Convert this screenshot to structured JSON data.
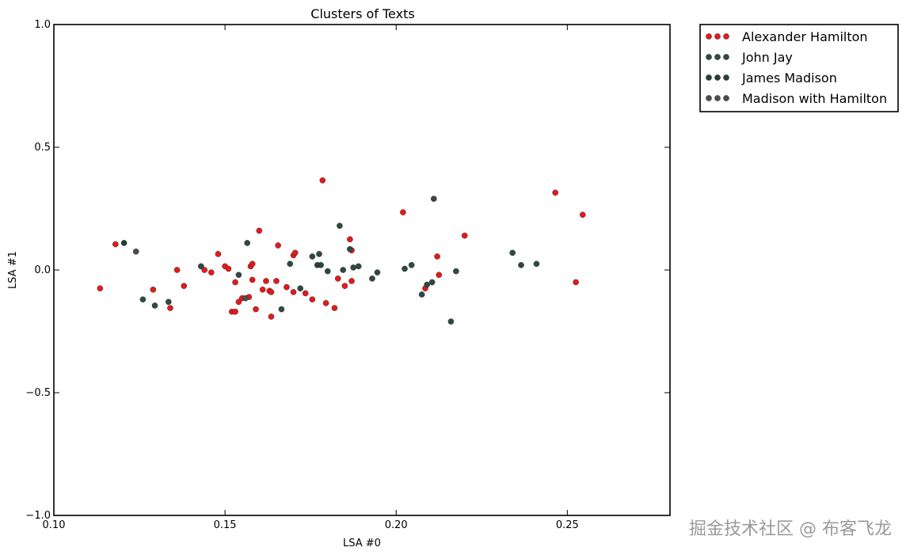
{
  "chart_data": {
    "type": "scatter",
    "title": "Clusters of Texts",
    "xlabel": "LSA #0",
    "ylabel": "LSA #1",
    "xlim": [
      0.1,
      0.28
    ],
    "ylim": [
      -1.0,
      1.0
    ],
    "x_ticks": [
      0.1,
      0.15,
      0.2,
      0.25
    ],
    "x_tick_labels": [
      "0.10",
      "0.15",
      "0.20",
      "0.25"
    ],
    "y_ticks": [
      -1.0,
      -0.5,
      0.0,
      0.5,
      1.0
    ],
    "y_tick_labels": [
      "−1.0",
      "−0.5",
      "0.0",
      "0.5",
      "1.0"
    ],
    "grid": false,
    "legend_position": "outside-top-right",
    "series": [
      {
        "name": "Alexander Hamilton",
        "color": "#e31a1c",
        "points": [
          [
            0.1135,
            -0.075
          ],
          [
            0.118,
            0.105
          ],
          [
            0.129,
            -0.08
          ],
          [
            0.134,
            -0.155
          ],
          [
            0.136,
            0.0
          ],
          [
            0.138,
            -0.065
          ],
          [
            0.144,
            0.0
          ],
          [
            0.146,
            -0.01
          ],
          [
            0.148,
            0.065
          ],
          [
            0.15,
            0.015
          ],
          [
            0.151,
            0.005
          ],
          [
            0.152,
            -0.17
          ],
          [
            0.153,
            -0.05
          ],
          [
            0.154,
            -0.13
          ],
          [
            0.153,
            -0.17
          ],
          [
            0.155,
            -0.115
          ],
          [
            0.157,
            -0.11
          ],
          [
            0.1575,
            0.015
          ],
          [
            0.158,
            0.025
          ],
          [
            0.158,
            -0.04
          ],
          [
            0.159,
            -0.16
          ],
          [
            0.16,
            0.16
          ],
          [
            0.161,
            -0.08
          ],
          [
            0.162,
            -0.045
          ],
          [
            0.163,
            -0.085
          ],
          [
            0.1635,
            -0.09
          ],
          [
            0.1635,
            -0.19
          ],
          [
            0.165,
            -0.045
          ],
          [
            0.1655,
            0.1
          ],
          [
            0.168,
            -0.07
          ],
          [
            0.17,
            0.06
          ],
          [
            0.1705,
            0.07
          ],
          [
            0.17,
            -0.09
          ],
          [
            0.1735,
            -0.095
          ],
          [
            0.1755,
            -0.12
          ],
          [
            0.1785,
            0.365
          ],
          [
            0.1795,
            -0.135
          ],
          [
            0.182,
            -0.155
          ],
          [
            0.183,
            -0.035
          ],
          [
            0.185,
            -0.065
          ],
          [
            0.1865,
            0.125
          ],
          [
            0.187,
            0.08
          ],
          [
            0.187,
            -0.045
          ],
          [
            0.202,
            0.235
          ],
          [
            0.2085,
            -0.075
          ],
          [
            0.212,
            0.055
          ],
          [
            0.2125,
            -0.02
          ],
          [
            0.22,
            0.14
          ],
          [
            0.2465,
            0.315
          ],
          [
            0.2525,
            -0.05
          ],
          [
            0.2545,
            0.225
          ]
        ]
      },
      {
        "name": "John Jay",
        "color": "#2f4a40",
        "points": [
          [
            0.126,
            -0.12
          ],
          [
            0.1295,
            -0.145
          ],
          [
            0.1335,
            -0.13
          ],
          [
            0.143,
            0.015
          ],
          [
            0.154,
            -0.02
          ],
          [
            0.1565,
            0.11
          ],
          [
            0.1665,
            -0.16
          ],
          [
            0.169,
            0.025
          ],
          [
            0.172,
            -0.075
          ],
          [
            0.1755,
            0.055
          ],
          [
            0.1775,
            0.065
          ],
          [
            0.178,
            0.02
          ],
          [
            0.18,
            -0.005
          ],
          [
            0.1835,
            0.18
          ],
          [
            0.1845,
            0.0
          ],
          [
            0.1865,
            0.085
          ],
          [
            0.1875,
            0.01
          ],
          [
            0.189,
            0.015
          ],
          [
            0.193,
            -0.035
          ],
          [
            0.1945,
            -0.01
          ],
          [
            0.2025,
            0.005
          ],
          [
            0.2045,
            0.02
          ],
          [
            0.2075,
            -0.1
          ],
          [
            0.209,
            -0.06
          ],
          [
            0.2105,
            -0.05
          ],
          [
            0.211,
            0.29
          ],
          [
            0.216,
            -0.21
          ],
          [
            0.2175,
            -0.005
          ],
          [
            0.234,
            0.07
          ],
          [
            0.2365,
            0.02
          ],
          [
            0.241,
            0.025
          ]
        ]
      },
      {
        "name": "James Madison",
        "color": "#2b3d38",
        "points": [
          [
            0.1205,
            0.11
          ],
          [
            0.177,
            0.02
          ]
        ]
      },
      {
        "name": "Madison with Hamilton",
        "color": "#4d4d4d",
        "points": [
          [
            0.124,
            0.075
          ],
          [
            0.156,
            -0.115
          ]
        ]
      }
    ],
    "watermark": "掘金技术社区 @ 布客飞龙"
  }
}
